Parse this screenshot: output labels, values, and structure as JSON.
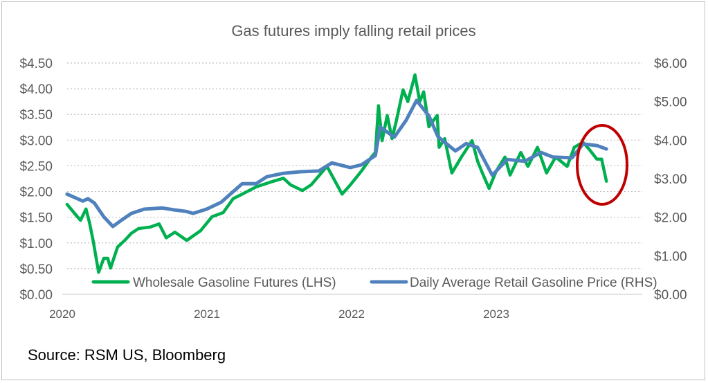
{
  "source": "Source: RSM US, Bloomberg",
  "colors": {
    "futures": "#00b050",
    "retail": "#4f81bd",
    "highlight_ellipse": "#c00000",
    "grid": "#bfbfbf",
    "text": "#595959"
  },
  "chart_data": {
    "type": "line",
    "title": "Gas futures imply falling retail prices",
    "x_axis": {
      "type": "date",
      "tick_labels": [
        "2020",
        "2021",
        "2022",
        "2023"
      ]
    },
    "y_left": {
      "range": [
        0,
        4.5
      ],
      "tick_labels": [
        "$0.00",
        "$0.50",
        "$1.00",
        "$1.50",
        "$2.00",
        "$2.50",
        "$3.00",
        "$3.50",
        "$4.00",
        "$4.50"
      ]
    },
    "y_right": {
      "range": [
        0,
        6
      ],
      "tick_labels": [
        "$0.00",
        "$1.00",
        "$2.00",
        "$3.00",
        "$4.00",
        "$5.00",
        "$6.00"
      ]
    },
    "grid": true,
    "legend_placement": "bottom-inside",
    "annotation": "red ellipse highlighting latest futures drop",
    "series": [
      {
        "name": "Wholesale Gasoline Futures (LHS)",
        "axis": "left",
        "points": [
          [
            "2020-01-13",
            1.75
          ],
          [
            "2020-02-04",
            1.55
          ],
          [
            "2020-02-16",
            1.44
          ],
          [
            "2020-03-01",
            1.66
          ],
          [
            "2020-03-10",
            1.39
          ],
          [
            "2020-03-19",
            1.05
          ],
          [
            "2020-04-02",
            0.43
          ],
          [
            "2020-04-15",
            0.7
          ],
          [
            "2020-04-25",
            0.7
          ],
          [
            "2020-05-02",
            0.51
          ],
          [
            "2020-05-20",
            0.92
          ],
          [
            "2020-06-07",
            1.05
          ],
          [
            "2020-06-24",
            1.19
          ],
          [
            "2020-07-12",
            1.28
          ],
          [
            "2020-08-11",
            1.31
          ],
          [
            "2020-09-02",
            1.37
          ],
          [
            "2020-09-20",
            1.1
          ],
          [
            "2020-10-12",
            1.21
          ],
          [
            "2020-11-11",
            1.05
          ],
          [
            "2020-12-16",
            1.24
          ],
          [
            "2021-01-14",
            1.51
          ],
          [
            "2021-02-11",
            1.59
          ],
          [
            "2021-03-08",
            1.86
          ],
          [
            "2021-03-31",
            1.95
          ],
          [
            "2021-05-05",
            2.09
          ],
          [
            "2021-06-09",
            2.18
          ],
          [
            "2021-07-13",
            2.26
          ],
          [
            "2021-07-31",
            2.13
          ],
          [
            "2021-08-30",
            2.02
          ],
          [
            "2021-09-21",
            2.13
          ],
          [
            "2021-10-31",
            2.49
          ],
          [
            "2021-12-08",
            1.95
          ],
          [
            "2021-12-29",
            2.13
          ],
          [
            "2022-01-26",
            2.4
          ],
          [
            "2022-02-20",
            2.67
          ],
          [
            "2022-03-02",
            2.76
          ],
          [
            "2022-03-10",
            3.67
          ],
          [
            "2022-03-19",
            2.99
          ],
          [
            "2022-04-01",
            3.48
          ],
          [
            "2022-04-13",
            3.03
          ],
          [
            "2022-04-23",
            3.34
          ],
          [
            "2022-05-11",
            3.98
          ],
          [
            "2022-05-23",
            3.75
          ],
          [
            "2022-06-10",
            4.27
          ],
          [
            "2022-06-22",
            3.75
          ],
          [
            "2022-07-02",
            3.94
          ],
          [
            "2022-07-15",
            3.26
          ],
          [
            "2022-08-05",
            3.48
          ],
          [
            "2022-08-10",
            2.86
          ],
          [
            "2022-08-24",
            3.03
          ],
          [
            "2022-09-11",
            2.36
          ],
          [
            "2022-10-05",
            2.67
          ],
          [
            "2022-11-01",
            2.99
          ],
          [
            "2022-11-15",
            2.59
          ],
          [
            "2022-11-27",
            2.36
          ],
          [
            "2022-12-14",
            2.06
          ],
          [
            "2023-01-01",
            2.4
          ],
          [
            "2023-01-23",
            2.67
          ],
          [
            "2023-02-05",
            2.32
          ],
          [
            "2023-03-04",
            2.76
          ],
          [
            "2023-03-22",
            2.49
          ],
          [
            "2023-04-15",
            2.86
          ],
          [
            "2023-05-08",
            2.36
          ],
          [
            "2023-05-31",
            2.67
          ],
          [
            "2023-06-29",
            2.49
          ],
          [
            "2023-07-17",
            2.86
          ],
          [
            "2023-08-08",
            2.96
          ],
          [
            "2023-08-26",
            2.8
          ],
          [
            "2023-09-12",
            2.63
          ],
          [
            "2023-09-24",
            2.63
          ],
          [
            "2023-10-06",
            2.2
          ]
        ]
      },
      {
        "name": "Daily Average Retail Gasoline Price (RHS)",
        "axis": "right",
        "points": [
          [
            "2020-01-13",
            2.6
          ],
          [
            "2020-02-22",
            2.42
          ],
          [
            "2020-03-06",
            2.48
          ],
          [
            "2020-03-22",
            2.37
          ],
          [
            "2020-04-15",
            2.01
          ],
          [
            "2020-05-08",
            1.76
          ],
          [
            "2020-06-01",
            1.94
          ],
          [
            "2020-06-24",
            2.1
          ],
          [
            "2020-07-26",
            2.21
          ],
          [
            "2020-09-10",
            2.24
          ],
          [
            "2020-10-11",
            2.19
          ],
          [
            "2020-11-10",
            2.15
          ],
          [
            "2020-11-27",
            2.1
          ],
          [
            "2020-12-31",
            2.21
          ],
          [
            "2021-02-06",
            2.39
          ],
          [
            "2021-03-01",
            2.6
          ],
          [
            "2021-03-31",
            2.87
          ],
          [
            "2021-05-05",
            2.87
          ],
          [
            "2021-06-01",
            3.05
          ],
          [
            "2021-07-13",
            3.14
          ],
          [
            "2021-08-24",
            3.18
          ],
          [
            "2021-10-10",
            3.2
          ],
          [
            "2021-11-12",
            3.41
          ],
          [
            "2021-12-29",
            3.29
          ],
          [
            "2022-01-26",
            3.36
          ],
          [
            "2022-03-02",
            3.6
          ],
          [
            "2022-03-14",
            4.34
          ],
          [
            "2022-04-19",
            4.08
          ],
          [
            "2022-05-19",
            4.52
          ],
          [
            "2022-06-14",
            5.03
          ],
          [
            "2022-07-15",
            4.63
          ],
          [
            "2022-08-07",
            4.09
          ],
          [
            "2022-09-20",
            3.72
          ],
          [
            "2022-10-17",
            3.91
          ],
          [
            "2022-11-15",
            3.81
          ],
          [
            "2022-12-22",
            3.09
          ],
          [
            "2023-01-29",
            3.5
          ],
          [
            "2023-03-14",
            3.45
          ],
          [
            "2023-04-24",
            3.68
          ],
          [
            "2023-05-24",
            3.56
          ],
          [
            "2023-07-11",
            3.54
          ],
          [
            "2023-08-08",
            3.9
          ],
          [
            "2023-09-12",
            3.86
          ],
          [
            "2023-10-06",
            3.77
          ]
        ]
      }
    ]
  }
}
